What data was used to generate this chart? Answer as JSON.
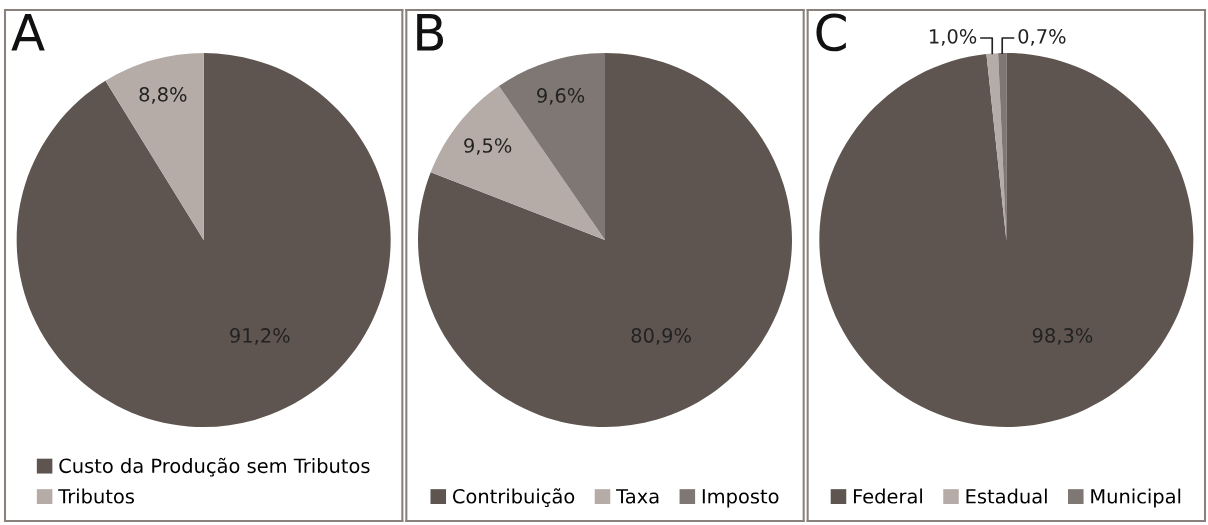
{
  "chart_data": [
    {
      "type": "pie",
      "title": "A",
      "categories": [
        "Custo da Produção sem Tributos",
        "Tributos"
      ],
      "values": [
        91.2,
        8.8
      ],
      "colors": [
        "#5e5550",
        "#b5aca8"
      ],
      "value_labels": [
        "91,2%",
        "8,8%"
      ],
      "legend": "bottom"
    },
    {
      "type": "pie",
      "title": "B",
      "categories": [
        "Contribuição",
        "Taxa",
        "Imposto"
      ],
      "values": [
        80.9,
        9.5,
        9.6
      ],
      "colors": [
        "#5e5550",
        "#b5aca8",
        "#7f7773"
      ],
      "value_labels": [
        "80,9%",
        "9,5%",
        "9,6%"
      ],
      "legend": "bottom"
    },
    {
      "type": "pie",
      "title": "C",
      "categories": [
        "Federal",
        "Estadual",
        "Municipal"
      ],
      "values": [
        98.3,
        1.0,
        0.7
      ],
      "colors": [
        "#5e5550",
        "#b5aca8",
        "#7f7773"
      ],
      "value_labels": [
        "98,3%",
        "1,0%",
        "0,7%"
      ],
      "legend": "bottom"
    }
  ]
}
